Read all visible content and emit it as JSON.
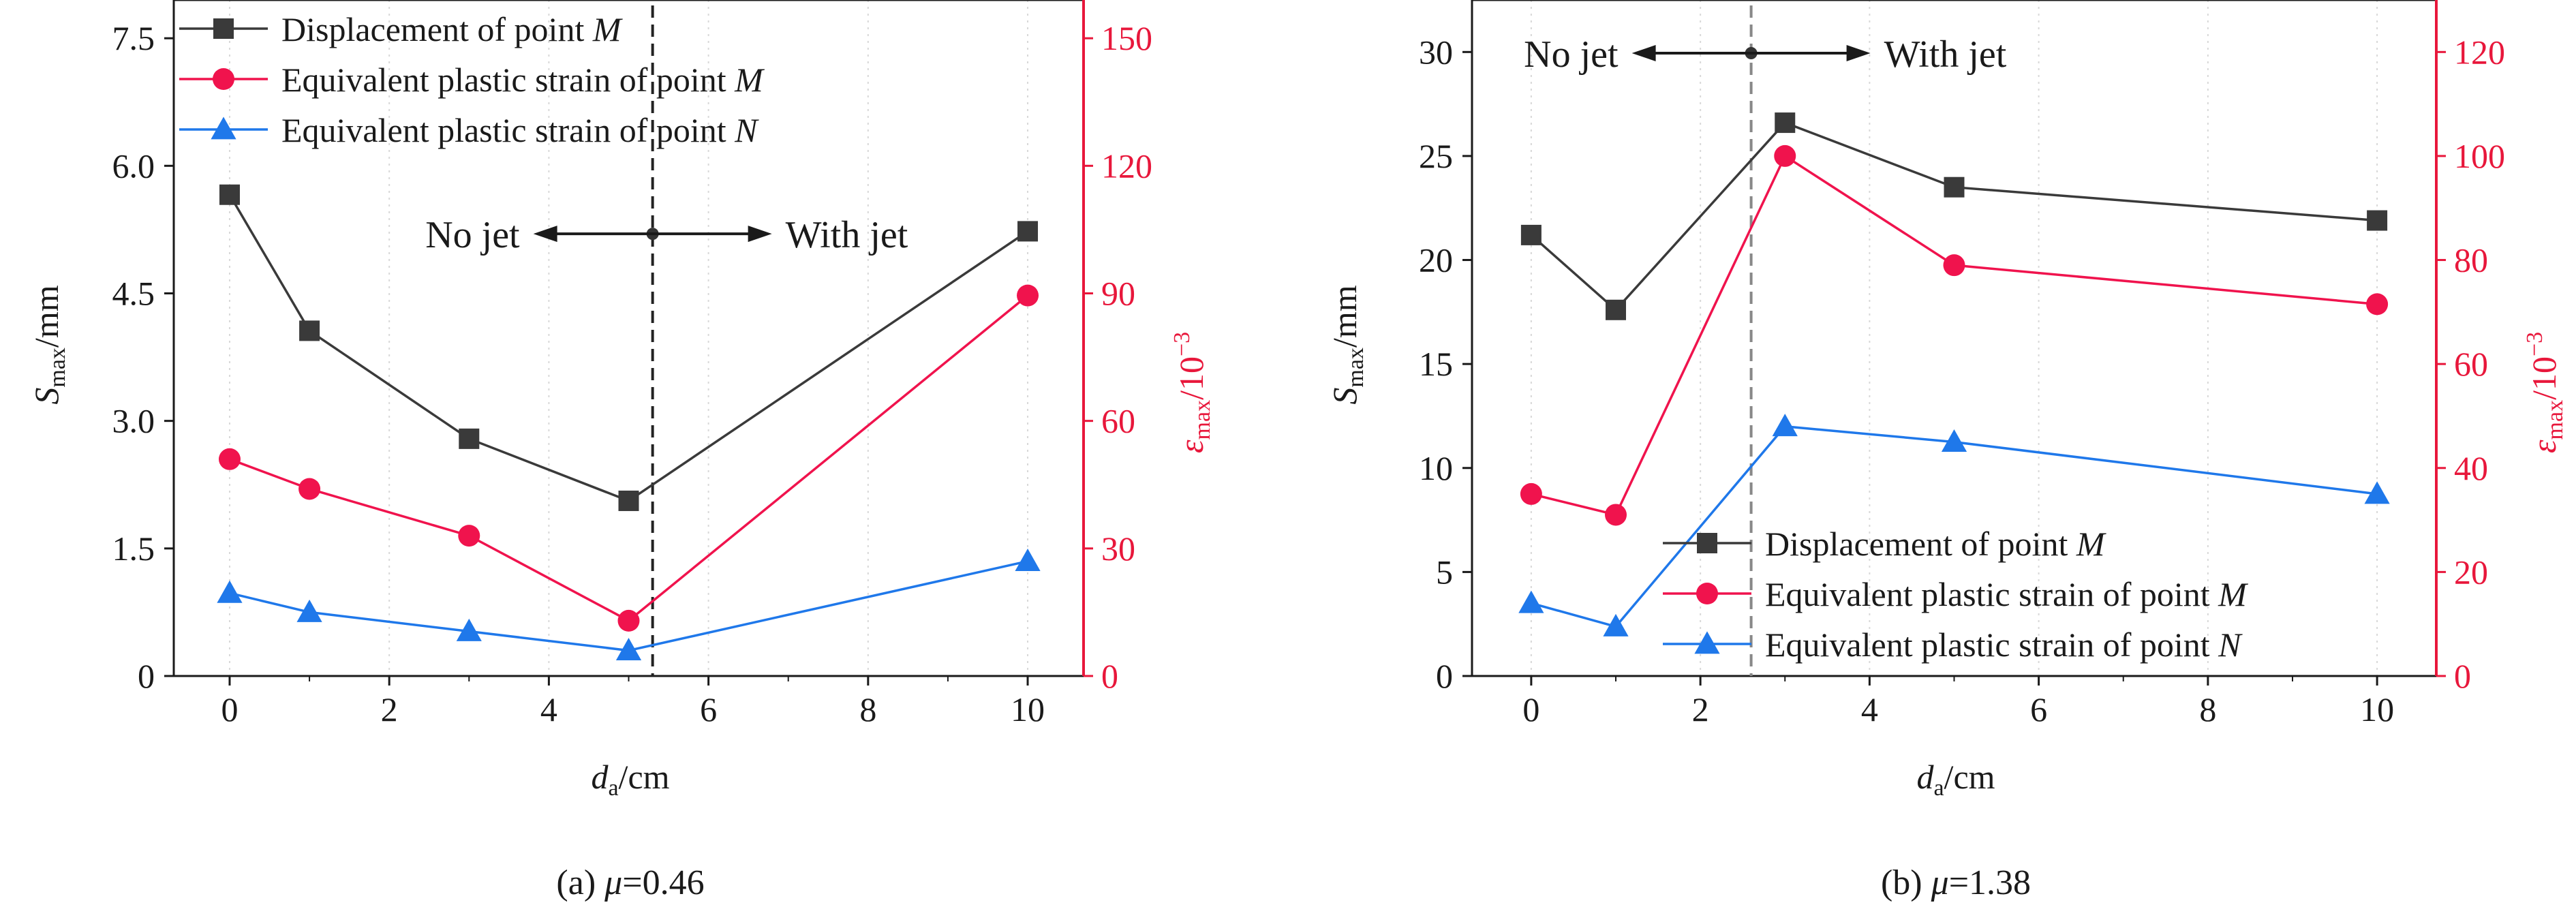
{
  "chart_data": [
    {
      "type": "line",
      "caption_prefix": "(a) ",
      "caption_mu": "μ",
      "caption_value": "=0.46",
      "x": [
        0,
        1,
        3,
        5,
        10
      ],
      "xlim": [
        -0.7,
        10.7
      ],
      "xticks": [
        "0",
        "2",
        "4",
        "6",
        "8",
        "10"
      ],
      "xtick_values": [
        0,
        2,
        4,
        6,
        8,
        10
      ],
      "xlabel": {
        "main": "d",
        "sub": "a",
        "rest": "/cm"
      },
      "ylabel_left": {
        "main": "S",
        "sub": "max",
        "rest": "/mm"
      },
      "ylim_left": [
        0,
        7.95
      ],
      "yticks_left": [
        "0",
        "1.5",
        "3.0",
        "4.5",
        "6.0",
        "7.5"
      ],
      "ytick_values_left": [
        0,
        1.5,
        3.0,
        4.5,
        6.0,
        7.5
      ],
      "ylabel_right": {
        "main": "ε",
        "sub": "max",
        "rest": "/10",
        "sup": "−3"
      },
      "ylim_right": [
        0,
        159
      ],
      "yticks_right": [
        "0",
        "30",
        "60",
        "90",
        "120",
        "150"
      ],
      "ytick_values_right": [
        0,
        30,
        60,
        90,
        120,
        150
      ],
      "series": [
        {
          "name": "Displacement of point ",
          "name_italic": "M",
          "axis": "left",
          "color": "#3a3a3a",
          "marker": "square",
          "values": [
            5.66,
            4.06,
            2.79,
            2.06,
            5.23
          ]
        },
        {
          "name": "Equivalent plastic strain of point ",
          "name_italic": "M",
          "axis": "right",
          "color": "#f0134d",
          "marker": "circle",
          "values": [
            51,
            44,
            33,
            13,
            89.5
          ]
        },
        {
          "name": "Equivalent plastic strain of point ",
          "name_italic": "N",
          "axis": "right",
          "color": "#1f78ea",
          "marker": "triangle",
          "values": [
            19.5,
            15,
            10.5,
            6,
            27
          ]
        }
      ],
      "legend": "top-left",
      "divider_x": 5.3,
      "divider_color": "#222222",
      "annot_left": "No jet",
      "annot_right": "With jet",
      "annot_y_left": 5.2
    },
    {
      "type": "line",
      "caption_prefix": "(b) ",
      "caption_mu": "μ",
      "caption_value": "=1.38",
      "x": [
        0,
        1,
        3,
        5,
        10
      ],
      "xlim": [
        -0.7,
        10.7
      ],
      "xticks": [
        "0",
        "2",
        "4",
        "6",
        "8",
        "10"
      ],
      "xtick_values": [
        0,
        2,
        4,
        6,
        8,
        10
      ],
      "xlabel": {
        "main": "d",
        "sub": "a",
        "rest": "/cm"
      },
      "ylabel_left": {
        "main": "S",
        "sub": "max",
        "rest": "/mm"
      },
      "ylim_left": [
        0,
        32.5
      ],
      "yticks_left": [
        "0",
        "5",
        "10",
        "15",
        "20",
        "25",
        "30"
      ],
      "ytick_values_left": [
        0,
        5,
        10,
        15,
        20,
        25,
        30
      ],
      "ylabel_right": {
        "main": "ε",
        "sub": "max",
        "rest": "/10",
        "sup": "−3"
      },
      "ylim_right": [
        0,
        130
      ],
      "yticks_right": [
        "0",
        "20",
        "40",
        "60",
        "80",
        "100",
        "120"
      ],
      "ytick_values_right": [
        0,
        20,
        40,
        60,
        80,
        100,
        120
      ],
      "series": [
        {
          "name": "Displacement of point ",
          "name_italic": "M",
          "axis": "left",
          "color": "#3a3a3a",
          "marker": "square",
          "values": [
            21.2,
            17.6,
            26.6,
            23.5,
            21.9
          ]
        },
        {
          "name": "Equivalent plastic strain of point ",
          "name_italic": "M",
          "axis": "right",
          "color": "#f0134d",
          "marker": "circle",
          "values": [
            35,
            31,
            100,
            79,
            71.5
          ]
        },
        {
          "name": "Equivalent plastic strain of point ",
          "name_italic": "N",
          "axis": "right",
          "color": "#1f78ea",
          "marker": "triangle",
          "values": [
            14,
            9.5,
            48,
            45,
            35
          ]
        }
      ],
      "legend": "bottom-center",
      "divider_x": 2.6,
      "divider_color": "#888888",
      "annot_left": "No jet",
      "annot_right": "With jet",
      "annot_y_left": 29.9
    }
  ]
}
